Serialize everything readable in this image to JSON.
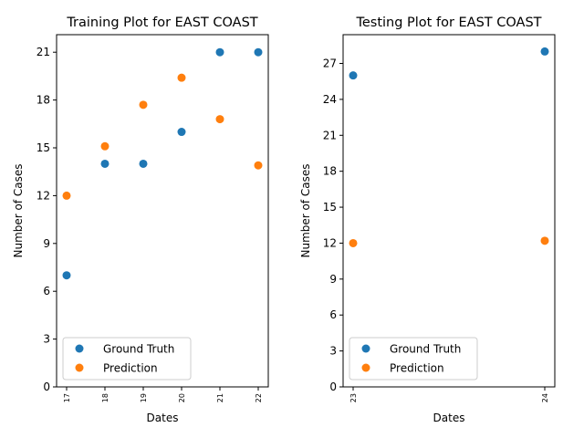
{
  "colors": {
    "ground_truth": "#1f77b4",
    "prediction": "#ff7f0e"
  },
  "chart_data": [
    {
      "type": "scatter",
      "title": "Training Plot for EAST COAST",
      "xlabel": "Dates",
      "ylabel": "Number of Cases",
      "x": [
        "17",
        "18",
        "19",
        "20",
        "21",
        "22"
      ],
      "yticks": [
        0,
        3,
        6,
        9,
        12,
        15,
        18,
        21
      ],
      "ylim": [
        0,
        22.1
      ],
      "legend_position": "lower-left",
      "grid": false,
      "series": [
        {
          "name": "Ground Truth",
          "values": [
            7,
            14,
            14,
            16,
            21,
            21
          ]
        },
        {
          "name": "Prediction",
          "values": [
            12,
            15.1,
            17.7,
            19.4,
            16.8,
            13.9
          ]
        }
      ]
    },
    {
      "type": "scatter",
      "title": "Testing Plot for EAST COAST",
      "xlabel": "Dates",
      "ylabel": "Number of Cases",
      "x": [
        "23",
        "24"
      ],
      "yticks": [
        0,
        3,
        6,
        9,
        12,
        15,
        18,
        21,
        24,
        27
      ],
      "ylim": [
        0,
        29.4
      ],
      "legend_position": "lower-left",
      "grid": false,
      "series": [
        {
          "name": "Ground Truth",
          "values": [
            26,
            28
          ]
        },
        {
          "name": "Prediction",
          "values": [
            12,
            12.2
          ]
        }
      ]
    }
  ]
}
